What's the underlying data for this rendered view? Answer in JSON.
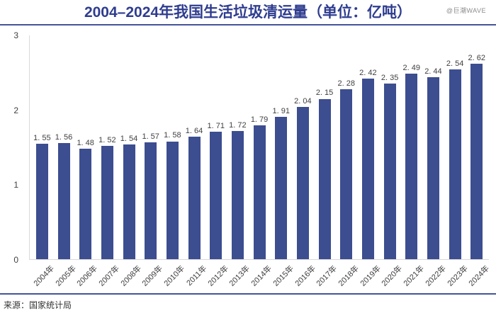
{
  "header": {
    "title": "2004–2024年我国生活垃圾清运量（单位：亿吨）",
    "watermark": "@巨潮WAVE"
  },
  "footer": {
    "source": "来源：国家统计局"
  },
  "colors": {
    "bar": "#3c4d90",
    "title": "#2f3d8f",
    "rule": "#44549a",
    "axis_line": "#d9d9d9",
    "label_text": "#404040",
    "watermark": "#8c8c8c"
  },
  "chart_data": {
    "type": "bar",
    "title": "2004–2024年我国生活垃圾清运量（单位：亿吨）",
    "xlabel": "",
    "ylabel": "",
    "ylim": [
      0,
      3
    ],
    "y_ticks": [
      0,
      1,
      2,
      3
    ],
    "grid": "off",
    "legend": "none",
    "categories": [
      "2004年",
      "2005年",
      "2006年",
      "2007年",
      "2008年",
      "2009年",
      "2010年",
      "2011年",
      "2012年",
      "2013年",
      "2014年",
      "2015年",
      "2016年",
      "2017年",
      "2018年",
      "2019年",
      "2020年",
      "2021年",
      "2022年",
      "2023年",
      "2024年"
    ],
    "values": [
      1.55,
      1.56,
      1.48,
      1.52,
      1.54,
      1.57,
      1.58,
      1.64,
      1.71,
      1.72,
      1.79,
      1.91,
      2.04,
      2.15,
      2.28,
      2.42,
      2.35,
      2.49,
      2.44,
      2.54,
      2.62
    ],
    "value_labels": [
      "1. 55",
      "1. 56",
      "1. 48",
      "1. 52",
      "1. 54",
      "1. 57",
      "1. 58",
      "1. 64",
      "1. 71",
      "1. 72",
      "1. 79",
      "1. 91",
      "2. 04",
      "2. 15",
      "2. 28",
      "2. 42",
      "2. 35",
      "2. 49",
      "2. 44",
      "2. 54",
      "2. 62"
    ]
  }
}
